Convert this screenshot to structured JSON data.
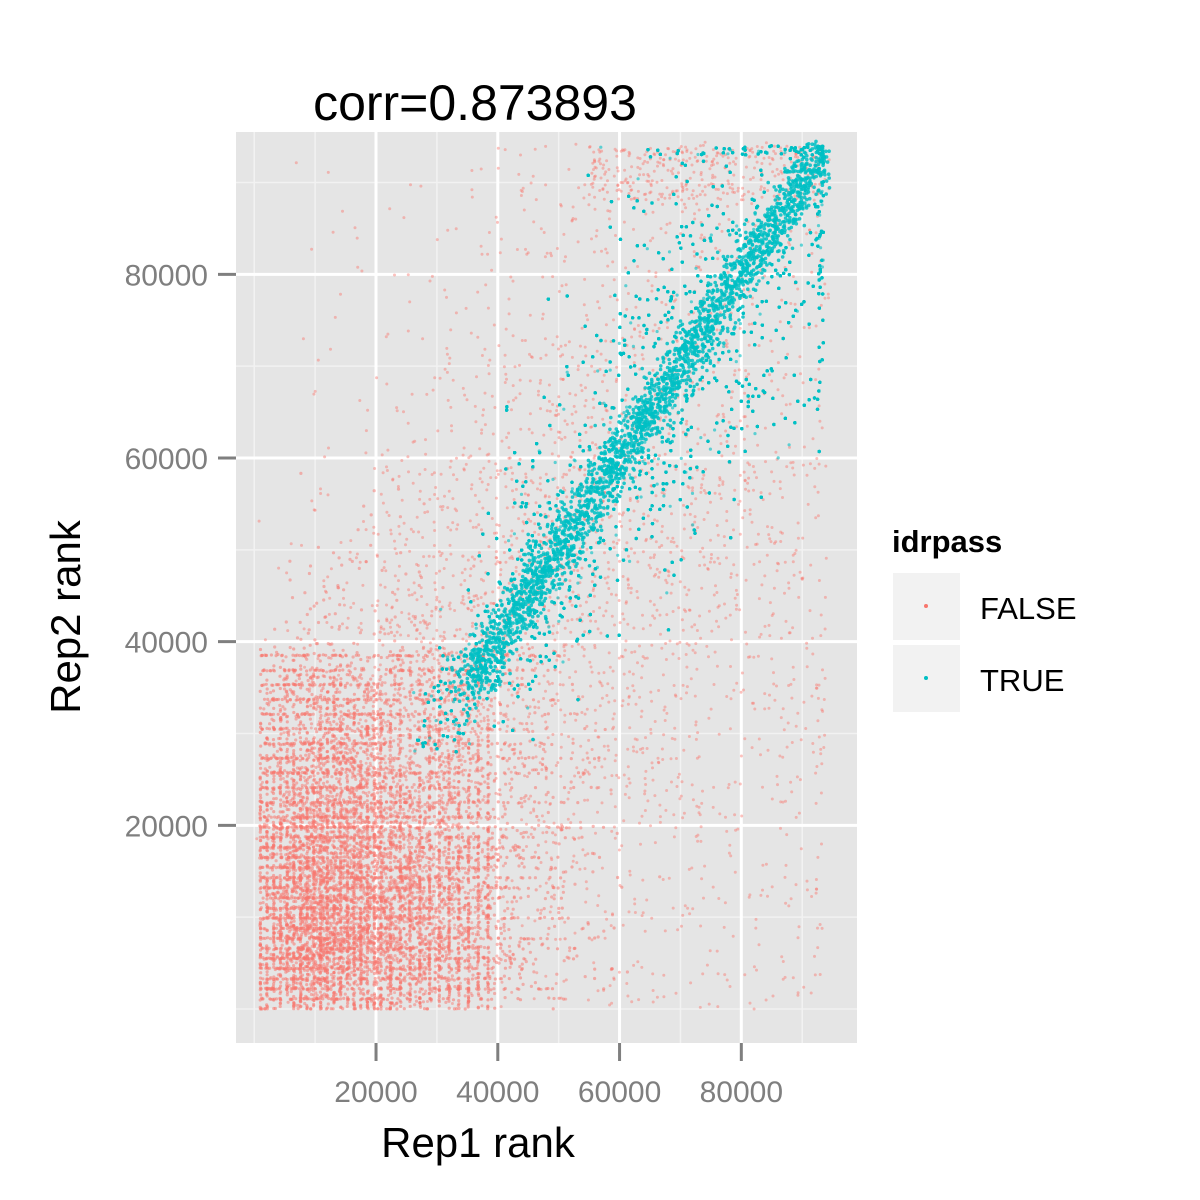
{
  "chart_data": {
    "type": "scatter",
    "title": "corr=0.873893",
    "xlabel": "Rep1 rank",
    "ylabel": "Rep2 rank",
    "xlim": [
      -3000,
      99000
    ],
    "ylim": [
      -3700,
      95500
    ],
    "x_ticks": [
      20000,
      40000,
      60000,
      80000
    ],
    "y_ticks": [
      20000,
      40000,
      60000,
      80000
    ],
    "grid": true,
    "legend": {
      "title": "idrpass",
      "placement": "right",
      "entries": [
        {
          "label": "FALSE",
          "color": "#F8766D"
        },
        {
          "label": "TRUE",
          "color": "#00BFC4"
        }
      ]
    },
    "series": [
      {
        "name": "FALSE",
        "color": "#F8766D",
        "description": "low-rank peaks failing IDR; concentrated at ranks below ~40000 on both replicates and in off-diagonal scatter"
      },
      {
        "name": "TRUE",
        "color": "#00BFC4",
        "description": "peaks passing IDR; dense band along the diagonal from about (28000, 28000) up to (94000, 94000)"
      }
    ]
  },
  "colors": {
    "panel_background": "#E5E5E5",
    "grid_major": "#FFFFFF",
    "grid_minor": "#F2F2F2",
    "false_color": "#F8766D",
    "true_color": "#00BFC4"
  }
}
